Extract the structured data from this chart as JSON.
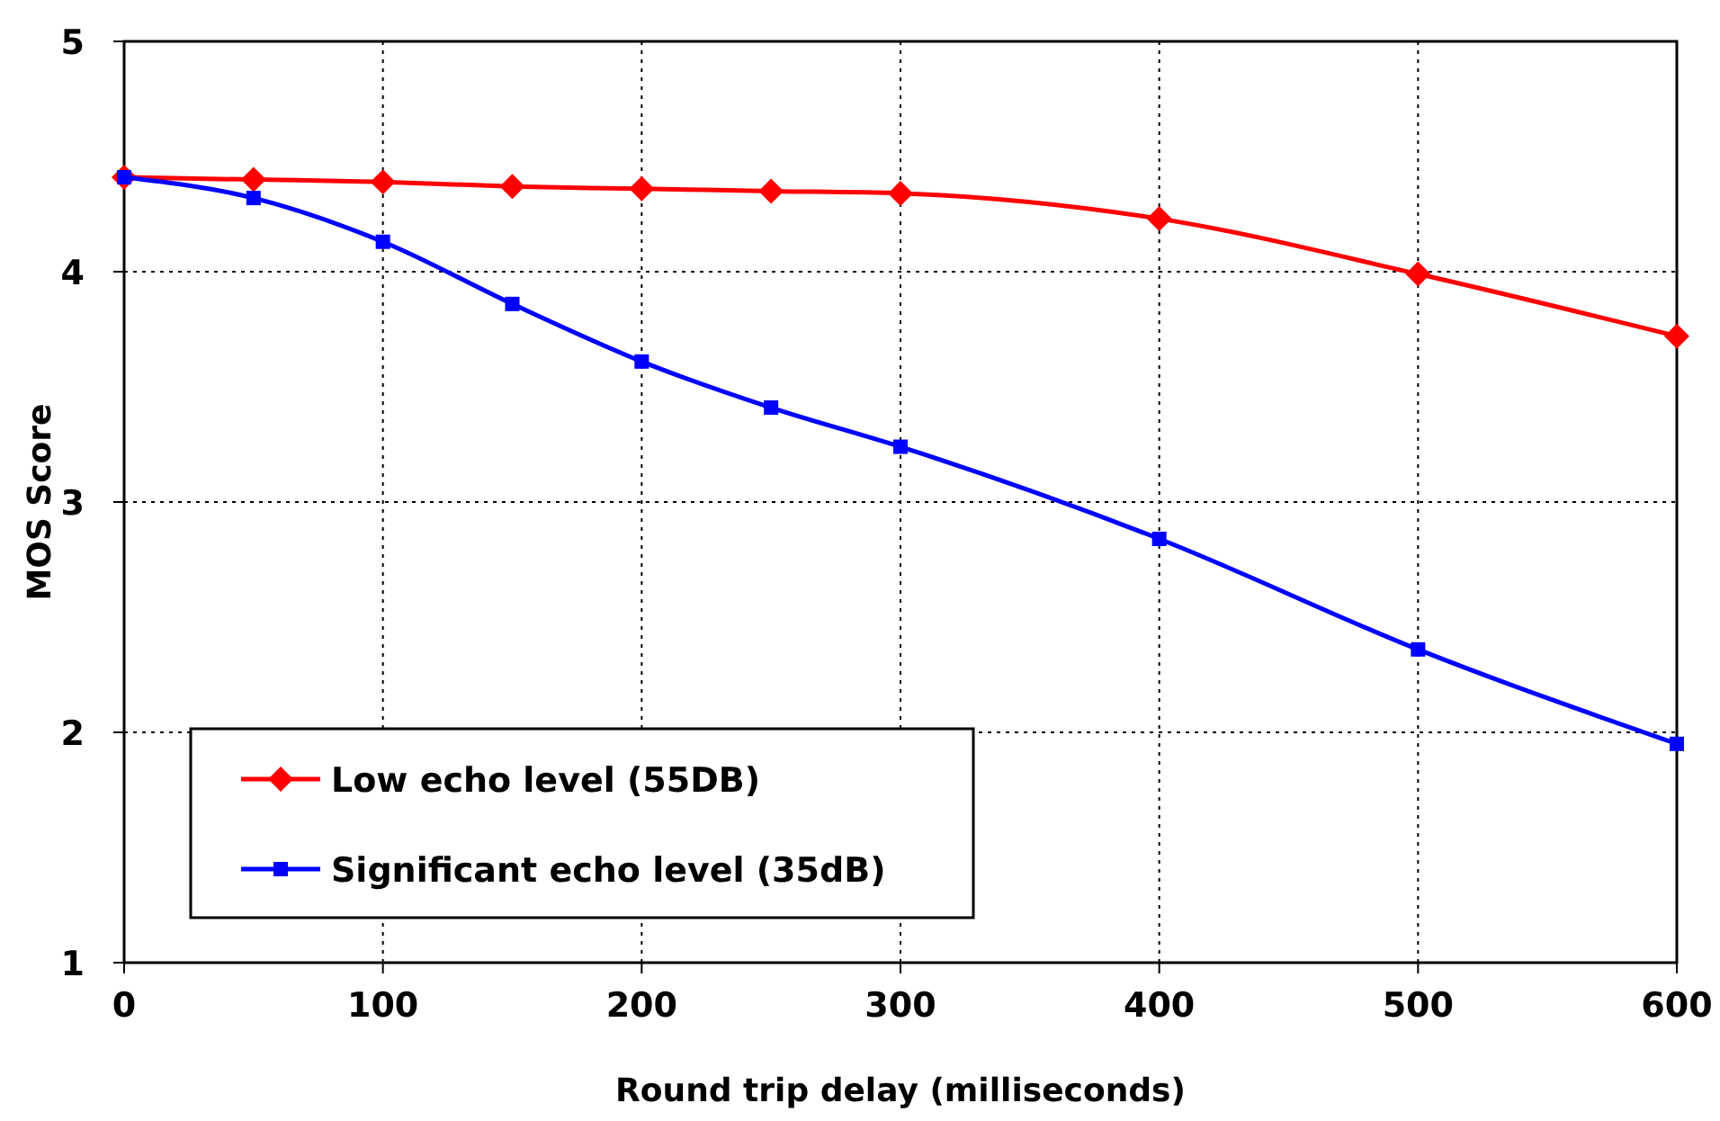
{
  "chart_data": {
    "type": "line",
    "xlabel": "Round trip delay (milliseconds)",
    "ylabel": "MOS Score",
    "x": [
      0,
      50,
      100,
      150,
      200,
      250,
      300,
      400,
      500,
      600
    ],
    "series": [
      {
        "name": "Low echo level (55DB)",
        "color": "#ff0000",
        "marker": "diamond",
        "values": [
          4.41,
          4.4,
          4.39,
          4.37,
          4.36,
          4.35,
          4.34,
          4.23,
          3.99,
          3.72
        ]
      },
      {
        "name": "Significant echo level (35dB)",
        "color": "#0000ff",
        "marker": "square",
        "values": [
          4.41,
          4.32,
          4.13,
          3.86,
          3.61,
          3.41,
          3.24,
          2.84,
          2.36,
          1.95
        ]
      }
    ],
    "xlim": [
      0,
      600
    ],
    "xticks": [
      0,
      100,
      200,
      300,
      400,
      500,
      600
    ],
    "ylim": [
      1,
      5
    ],
    "yticks": [
      1,
      2,
      3,
      4,
      5
    ],
    "grid": true,
    "legend": "bottom left",
    "line_style": "solid"
  }
}
